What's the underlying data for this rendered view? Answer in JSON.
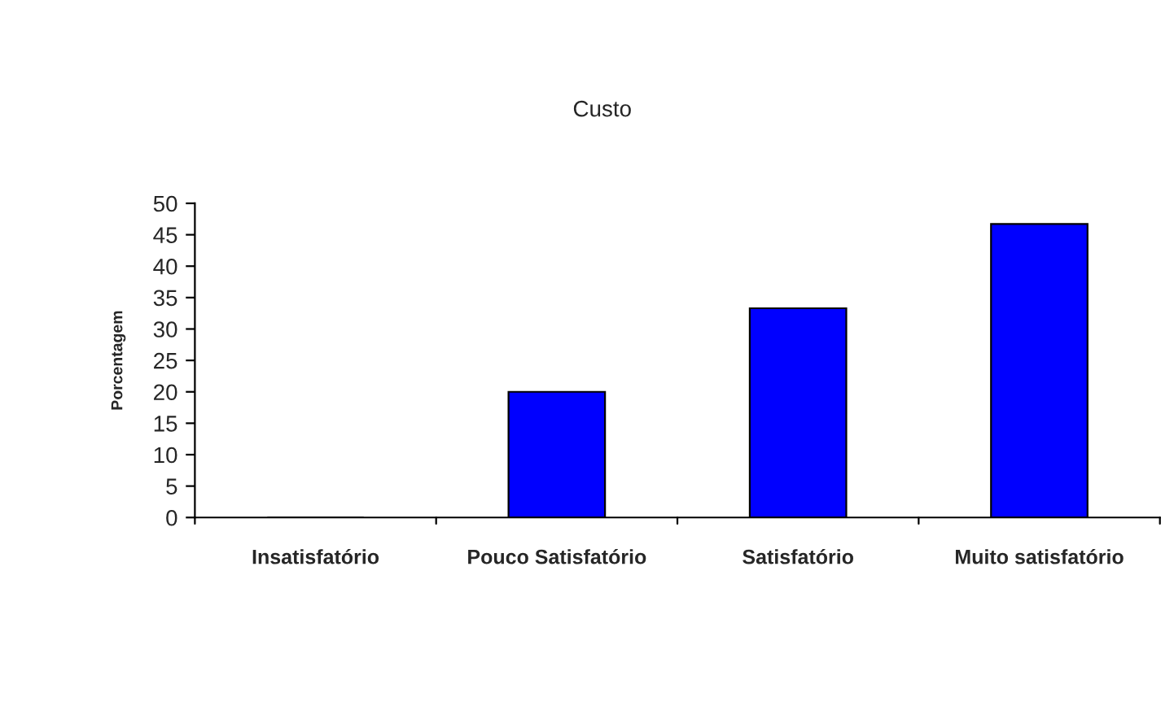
{
  "chart_data": {
    "type": "bar",
    "title": "Custo",
    "ylabel": "Porcentagem",
    "categories": [
      "Insatisfatório",
      "Pouco Satisfatório",
      "Satisfatório",
      "Muito satisfatório"
    ],
    "values": [
      0,
      20,
      33.3,
      46.7
    ],
    "color": "#0000ff",
    "ylim": [
      0,
      50
    ],
    "yticks": [
      0,
      5,
      10,
      15,
      20,
      25,
      30,
      35,
      40,
      45,
      50
    ],
    "grid": false,
    "legend": false
  }
}
